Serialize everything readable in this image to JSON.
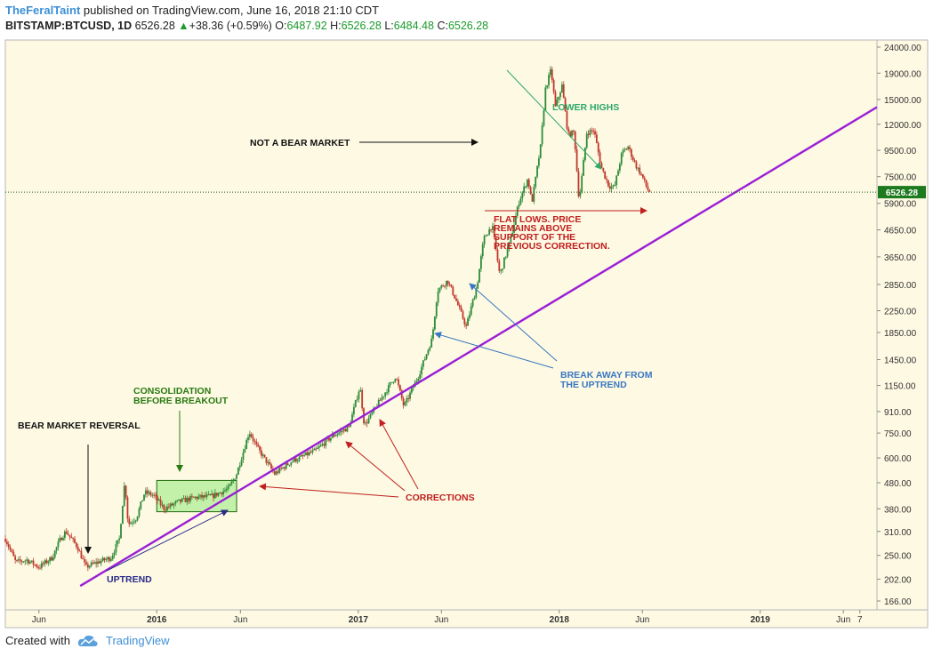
{
  "header": {
    "author": "TheFeralTaint",
    "published": "published on TradingView.com, June 16, 2018 21:10 CDT",
    "symbol": "BITSTAMP:BTCUSD, 1D",
    "last": "6526.28",
    "change": "+38.36 (+0.59%)",
    "o_label": "O:",
    "o": "6487.92",
    "h_label": "H:",
    "h": "6526.28",
    "l_label": "L:",
    "l": "6484.48",
    "c_label": "C:",
    "c": "6526.28"
  },
  "footer": {
    "created_with": "Created with",
    "brand": "TradingView"
  },
  "colors": {
    "background": "#fdf9e3",
    "uptrend": "#9a1fd6",
    "up_candle": "#2e8b3a",
    "down_candle": "#c0392b",
    "price_tag": "#1e7a1e",
    "consolidation_box": "#b9f0a0"
  },
  "chart_data": {
    "type": "candlestick",
    "scale": "log",
    "y_ticks": [
      24000,
      19000,
      15000,
      12000,
      9500,
      7500,
      5900,
      4650,
      3650,
      2850,
      2250,
      1850,
      1450,
      1150,
      910,
      750,
      600,
      480,
      380,
      310,
      250,
      202,
      166
    ],
    "y_tick_labels": [
      "24000.00",
      "19000.00",
      "15000.00",
      "12000.00",
      "9500.00",
      "7500.00",
      "5900.00",
      "4650.00",
      "3650.00",
      "2850.00",
      "2250.00",
      "1850.00",
      "1450.00",
      "1150.00",
      "910.00",
      "750.00",
      "600.00",
      "480.00",
      "380.00",
      "310.00",
      "250.00",
      "202.00",
      "166.00"
    ],
    "x_labels": [
      "Jun",
      "2016",
      "Jun",
      "2017",
      "Jun",
      "2018",
      "Jun",
      "2019",
      "Jun",
      "7"
    ],
    "x_label_dates": [
      "2015-06-01",
      "2016-01-01",
      "2016-06-01",
      "2017-01-01",
      "2017-06-01",
      "2018-01-01",
      "2018-06-01",
      "2019-01-01",
      "2019-06-01",
      "2019-07-01"
    ],
    "x_range": [
      "2015-04-01",
      "2019-08-01"
    ],
    "current_price": 6526.28,
    "current_price_label": "6526.28",
    "price_path": [
      [
        "2015-04-01",
        290
      ],
      [
        "2015-04-20",
        235
      ],
      [
        "2015-05-10",
        240
      ],
      [
        "2015-06-01",
        225
      ],
      [
        "2015-06-25",
        245
      ],
      [
        "2015-07-10",
        290
      ],
      [
        "2015-07-20",
        310
      ],
      [
        "2015-08-10",
        270
      ],
      [
        "2015-08-25",
        225
      ],
      [
        "2015-09-15",
        235
      ],
      [
        "2015-10-10",
        245
      ],
      [
        "2015-10-25",
        290
      ],
      [
        "2015-11-04",
        490
      ],
      [
        "2015-11-10",
        330
      ],
      [
        "2015-11-25",
        350
      ],
      [
        "2015-12-10",
        440
      ],
      [
        "2015-12-25",
        430
      ],
      [
        "2016-01-15",
        380
      ],
      [
        "2016-02-10",
        405
      ],
      [
        "2016-03-10",
        420
      ],
      [
        "2016-04-10",
        425
      ],
      [
        "2016-05-10",
        455
      ],
      [
        "2016-05-25",
        520
      ],
      [
        "2016-06-17",
        760
      ],
      [
        "2016-07-01",
        660
      ],
      [
        "2016-08-02",
        520
      ],
      [
        "2016-09-01",
        580
      ],
      [
        "2016-10-15",
        640
      ],
      [
        "2016-11-15",
        730
      ],
      [
        "2016-12-15",
        790
      ],
      [
        "2017-01-04",
        1140
      ],
      [
        "2017-01-12",
        800
      ],
      [
        "2017-02-15",
        1050
      ],
      [
        "2017-03-10",
        1250
      ],
      [
        "2017-03-25",
        950
      ],
      [
        "2017-04-20",
        1250
      ],
      [
        "2017-05-15",
        1750
      ],
      [
        "2017-05-25",
        2700
      ],
      [
        "2017-06-12",
        2950
      ],
      [
        "2017-06-25",
        2550
      ],
      [
        "2017-07-16",
        1950
      ],
      [
        "2017-08-05",
        2850
      ],
      [
        "2017-08-17",
        4300
      ],
      [
        "2017-09-01",
        4850
      ],
      [
        "2017-09-15",
        3100
      ],
      [
        "2017-10-05",
        4300
      ],
      [
        "2017-10-20",
        6000
      ],
      [
        "2017-11-05",
        7400
      ],
      [
        "2017-11-12",
        5900
      ],
      [
        "2017-11-28",
        9800
      ],
      [
        "2017-12-07",
        16500
      ],
      [
        "2017-12-17",
        19600
      ],
      [
        "2017-12-25",
        14000
      ],
      [
        "2018-01-06",
        17000
      ],
      [
        "2018-01-17",
        10900
      ],
      [
        "2018-01-28",
        11200
      ],
      [
        "2018-02-06",
        6000
      ],
      [
        "2018-02-20",
        11100
      ],
      [
        "2018-03-05",
        11400
      ],
      [
        "2018-03-18",
        8200
      ],
      [
        "2018-04-01",
        6900
      ],
      [
        "2018-04-11",
        6800
      ],
      [
        "2018-04-25",
        9300
      ],
      [
        "2018-05-06",
        9800
      ],
      [
        "2018-05-20",
        8300
      ],
      [
        "2018-06-01",
        7500
      ],
      [
        "2018-06-10",
        6700
      ],
      [
        "2018-06-16",
        6526
      ]
    ],
    "consolidation": {
      "from": "2016-01-01",
      "to": "2016-05-25",
      "low": 370,
      "high": 490
    },
    "uptrend_line": {
      "from": [
        "2015-08-15",
        190
      ],
      "to": [
        "2019-08-01",
        14000
      ]
    },
    "annotations": {
      "bear_reversal": "BEAR MARKET REVERSAL",
      "consolidation_1": "CONSOLIDATION",
      "consolidation_2": "BEFORE BREAKOUT",
      "uptrend": "UPTREND",
      "corrections": "CORRECTIONS",
      "break_away_1": "BREAK AWAY FROM",
      "break_away_2": "THE UPTREND",
      "not_bear": "NOT A BEAR MARKET",
      "lower_highs": "LOWER HIGHS",
      "flat_lows_1": "FLAT LOWS. PRICE",
      "flat_lows_2": "REMAINS ABOVE",
      "flat_lows_3": "SUPPORT OF THE",
      "flat_lows_4": "PREVIOUS CORRECTION."
    }
  }
}
